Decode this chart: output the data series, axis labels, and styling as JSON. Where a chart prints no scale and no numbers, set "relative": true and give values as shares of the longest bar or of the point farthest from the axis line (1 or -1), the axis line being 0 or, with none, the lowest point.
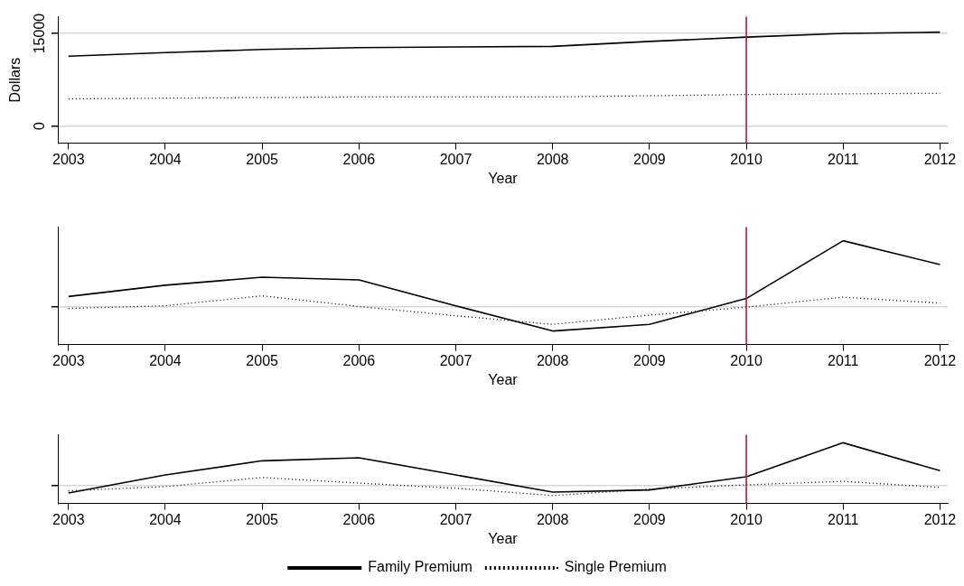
{
  "chart_data": [
    {
      "type": "line",
      "xlabel": "Year",
      "ylabel": "Dollars",
      "x": [
        2003,
        2004,
        2005,
        2006,
        2007,
        2008,
        2009,
        2010,
        2011,
        2012
      ],
      "xlim": [
        2002.89,
        2012.08
      ],
      "xticks": [
        2003,
        2004,
        2005,
        2006,
        2007,
        2008,
        2009,
        2010,
        2011,
        2012
      ],
      "ylim": [
        -2800,
        17700
      ],
      "yticks": [
        0,
        15000
      ],
      "grid": "y",
      "legend": false,
      "marker": "none",
      "series": [
        {
          "color": "#000000",
          "line_style": "solid",
          "values": [
            11300,
            11900,
            12400,
            12700,
            12800,
            12900,
            13700,
            14400,
            15000,
            15200
          ]
        },
        {
          "color": "#000000",
          "line_style": "dotted",
          "values": [
            4400,
            4500,
            4600,
            4700,
            4700,
            4700,
            4900,
            5100,
            5200,
            5300
          ]
        }
      ],
      "ref_lines": [
        {
          "axis": "x",
          "value": 2010,
          "color": "#c8102e"
        }
      ]
    },
    {
      "type": "line",
      "xlabel": "Year",
      "relative": true,
      "x": [
        2003,
        2004,
        2005,
        2006,
        2007,
        2008,
        2009,
        2010,
        2011,
        2012
      ],
      "xlim": [
        2002.89,
        2012.08
      ],
      "xticks": [
        2003,
        2004,
        2005,
        2006,
        2007,
        2008,
        2009,
        2010,
        2011,
        2012
      ],
      "legend": false,
      "marker": "none",
      "series": [
        {
          "color": "#000000",
          "line_style": "solid",
          "values": [
            0.16,
            0.33,
            0.45,
            0.41,
            0.02,
            -0.36,
            -0.26,
            0.13,
            1,
            0.64
          ]
        },
        {
          "color": "#000000",
          "line_style": "dotted",
          "values": [
            -0.02,
            0.02,
            0.17,
            0.01,
            -0.13,
            -0.26,
            -0.12,
            0,
            0.15,
            0.06
          ]
        }
      ],
      "ref_lines": [
        {
          "axis": "x",
          "value": 2010,
          "color": "#c8102e"
        }
      ]
    },
    {
      "type": "line",
      "xlabel": "Year",
      "relative": true,
      "x": [
        2003,
        2004,
        2005,
        2006,
        2007,
        2008,
        2009,
        2010,
        2011,
        2012
      ],
      "xlim": [
        2002.89,
        2012.08
      ],
      "xticks": [
        2003,
        2004,
        2005,
        2006,
        2007,
        2008,
        2009,
        2010,
        2011,
        2012
      ],
      "legend": "bottom",
      "marker": "none",
      "series": [
        {
          "name": "Family Premium",
          "color": "#000000",
          "line_style": "solid",
          "values": [
            -0.17,
            0.25,
            0.58,
            0.65,
            0.25,
            -0.15,
            -0.1,
            0.21,
            1,
            0.35
          ]
        },
        {
          "name": "Single Premium",
          "color": "#000000",
          "line_style": "dotted",
          "values": [
            -0.12,
            -0.02,
            0.19,
            0.06,
            -0.06,
            -0.23,
            -0.08,
            0.02,
            0.1,
            -0.04
          ]
        }
      ],
      "ref_lines": [
        {
          "axis": "x",
          "value": 2010,
          "color": "#c8102e"
        }
      ]
    }
  ]
}
